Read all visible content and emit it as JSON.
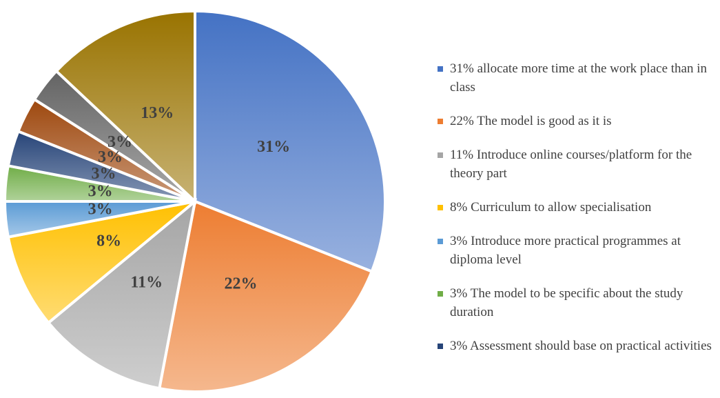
{
  "chart_data": {
    "type": "pie",
    "categories": [
      "31% allocate more time at the work place than in class",
      "22% The model is good as it is",
      "11% Introduce online courses/platform for the theory part",
      "8% Curriculum to allow specialisation",
      "3% Introduce more practical programmes at diploma level",
      "3% The model to be specific about the study duration",
      "3% Assessment should base on practical activities",
      null,
      null,
      null
    ],
    "values": [
      31,
      22,
      11,
      8,
      3,
      3,
      3,
      3,
      3,
      13
    ],
    "value_labels": [
      "31%",
      "22%",
      "11%",
      "8%",
      "3%",
      "3%",
      "3%",
      "3%",
      "3%",
      "13%"
    ],
    "colors": [
      "#4472c4",
      "#ed7d31",
      "#a5a5a5",
      "#ffc000",
      "#5b9bd5",
      "#70ad47",
      "#264478",
      "#9e480e",
      "#636363",
      "#997300"
    ],
    "legend": "right"
  }
}
